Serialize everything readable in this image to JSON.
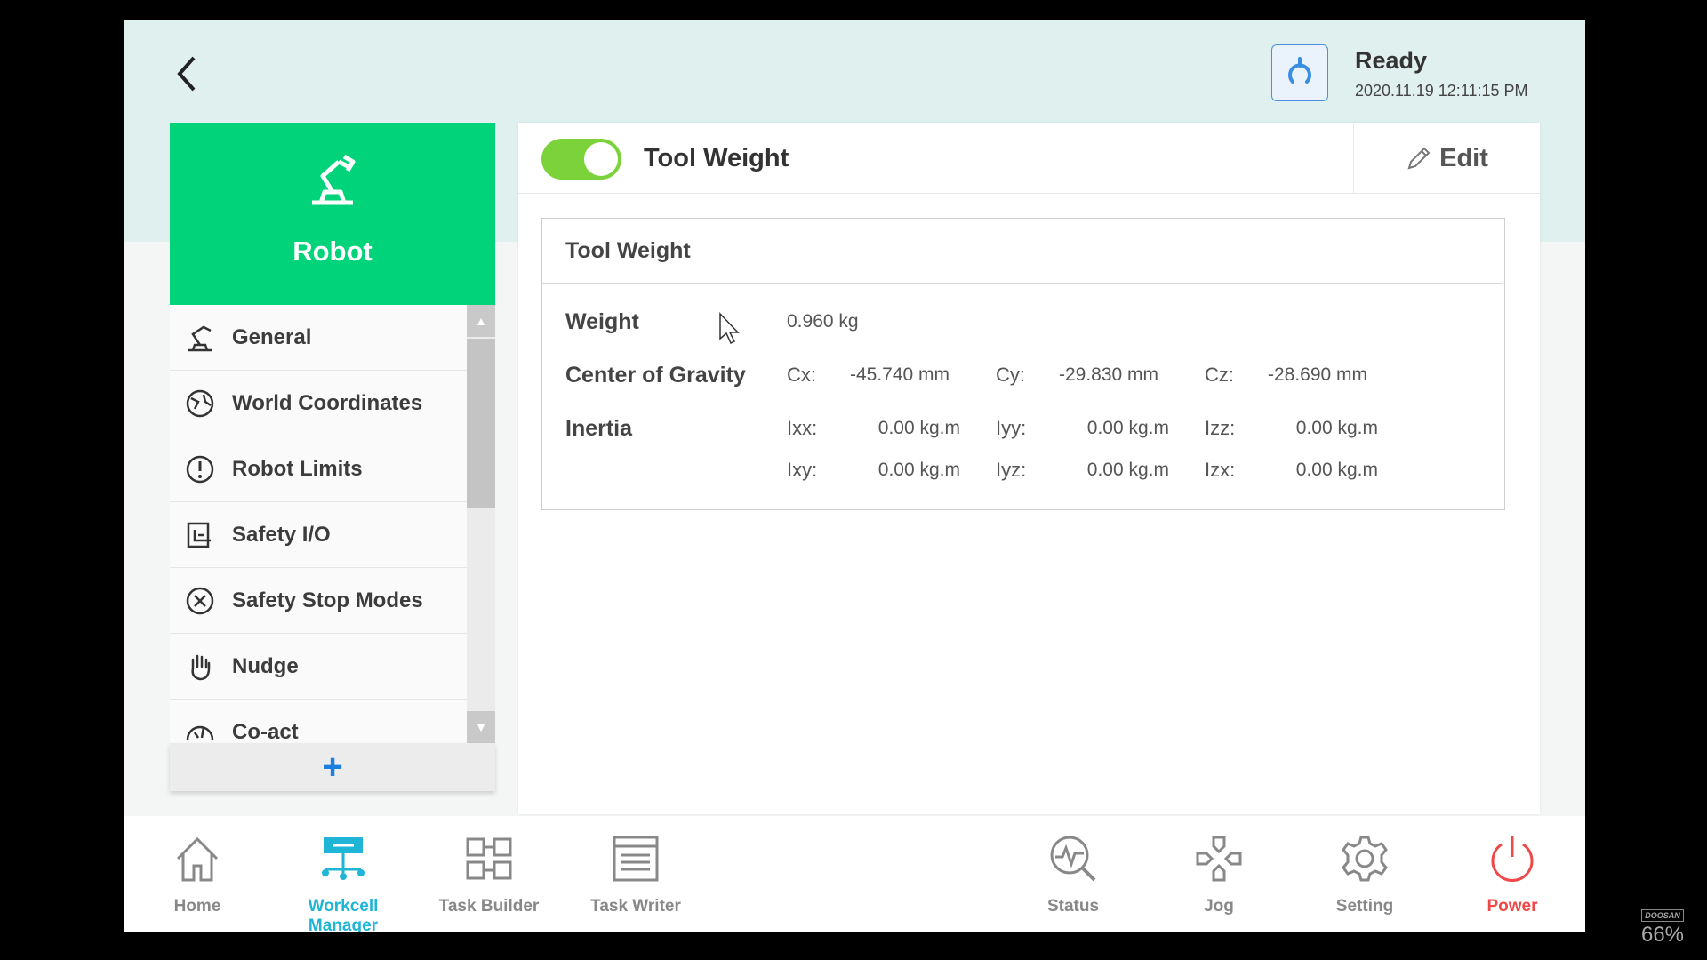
{
  "header": {
    "status": "Ready",
    "datetime": "2020.11.19 12:11:15 PM",
    "back_icon": "chevron-left-icon",
    "refresh_icon": "refresh-icon"
  },
  "sidebar": {
    "title": "Robot",
    "items": [
      {
        "label": "General",
        "icon": "robot-arm-icon"
      },
      {
        "label": "World Coordinates",
        "icon": "globe-icon"
      },
      {
        "label": "Robot Limits",
        "icon": "limit-icon"
      },
      {
        "label": "Safety I/O",
        "icon": "safety-io-icon"
      },
      {
        "label": "Safety Stop Modes",
        "icon": "stop-x-icon"
      },
      {
        "label": "Nudge",
        "icon": "hand-icon"
      },
      {
        "label": "Co-act",
        "icon": "co-act-icon"
      }
    ],
    "add_label": "+"
  },
  "panel": {
    "title": "Tool Weight",
    "enabled": true,
    "edit_label": "Edit",
    "box_title": "Tool Weight",
    "weight": {
      "label": "Weight",
      "value": "0.960 kg"
    },
    "cog": {
      "label": "Center of Gravity",
      "items": [
        {
          "axis": "Cx:",
          "value": "-45.740 mm"
        },
        {
          "axis": "Cy:",
          "value": "-29.830 mm"
        },
        {
          "axis": "Cz:",
          "value": "-28.690 mm"
        }
      ]
    },
    "inertia": {
      "label": "Inertia",
      "row1": [
        {
          "axis": "Ixx:",
          "value": "0.00 kg.m"
        },
        {
          "axis": "Iyy:",
          "value": "0.00 kg.m"
        },
        {
          "axis": "Izz:",
          "value": "0.00 kg.m"
        }
      ],
      "row2": [
        {
          "axis": "Ixy:",
          "value": "0.00 kg.m"
        },
        {
          "axis": "Iyz:",
          "value": "0.00 kg.m"
        },
        {
          "axis": "Izx:",
          "value": "0.00 kg.m"
        }
      ]
    }
  },
  "nav": [
    {
      "label": "Home"
    },
    {
      "label": "Workcell Manager",
      "active": true
    },
    {
      "label": "Task Builder"
    },
    {
      "label": "Task Writer"
    },
    {
      "label": "Status"
    },
    {
      "label": "Jog"
    },
    {
      "label": "Setting"
    },
    {
      "label": "Power"
    }
  ],
  "colors": {
    "accent": "#00d37a",
    "nav_active": "#1fb5d6",
    "power": "#f04848",
    "toggle_on": "#7bd23a"
  },
  "watermark": {
    "brand": "DOOSAN",
    "zoom": "66%"
  }
}
